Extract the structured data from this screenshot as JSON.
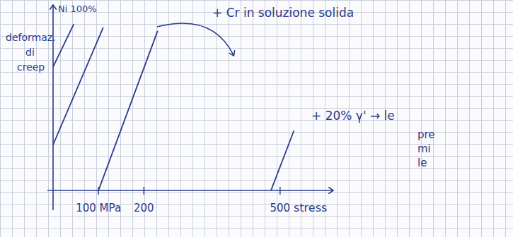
{
  "chart_data": {
    "type": "line",
    "x_label": "stress",
    "y_label": "deformaz. di creep",
    "annotations": [
      "Ni 100%",
      "+ Cr in soluzione solida",
      "+ 20% γ' → le",
      "pre",
      "mi",
      "le"
    ],
    "xlim": [
      0,
      600
    ],
    "xticks": [
      {
        "value": 100,
        "label": "100 MPa"
      },
      200,
      500
    ],
    "ylim": [
      0,
      10
    ],
    "tick_labels": "x",
    "grid": false,
    "color": "#2b3a8c",
    "series": [
      {
        "x": [
          0,
          45
        ],
        "values": [
          7.3,
          9.8
        ]
      },
      {
        "x": [
          0,
          110
        ],
        "values": [
          2.7,
          9.6
        ]
      },
      {
        "x": [
          100,
          230
        ],
        "values": [
          0,
          9.4
        ]
      },
      {
        "x": [
          480,
          530
        ],
        "values": [
          0,
          3.5
        ]
      }
    ]
  }
}
